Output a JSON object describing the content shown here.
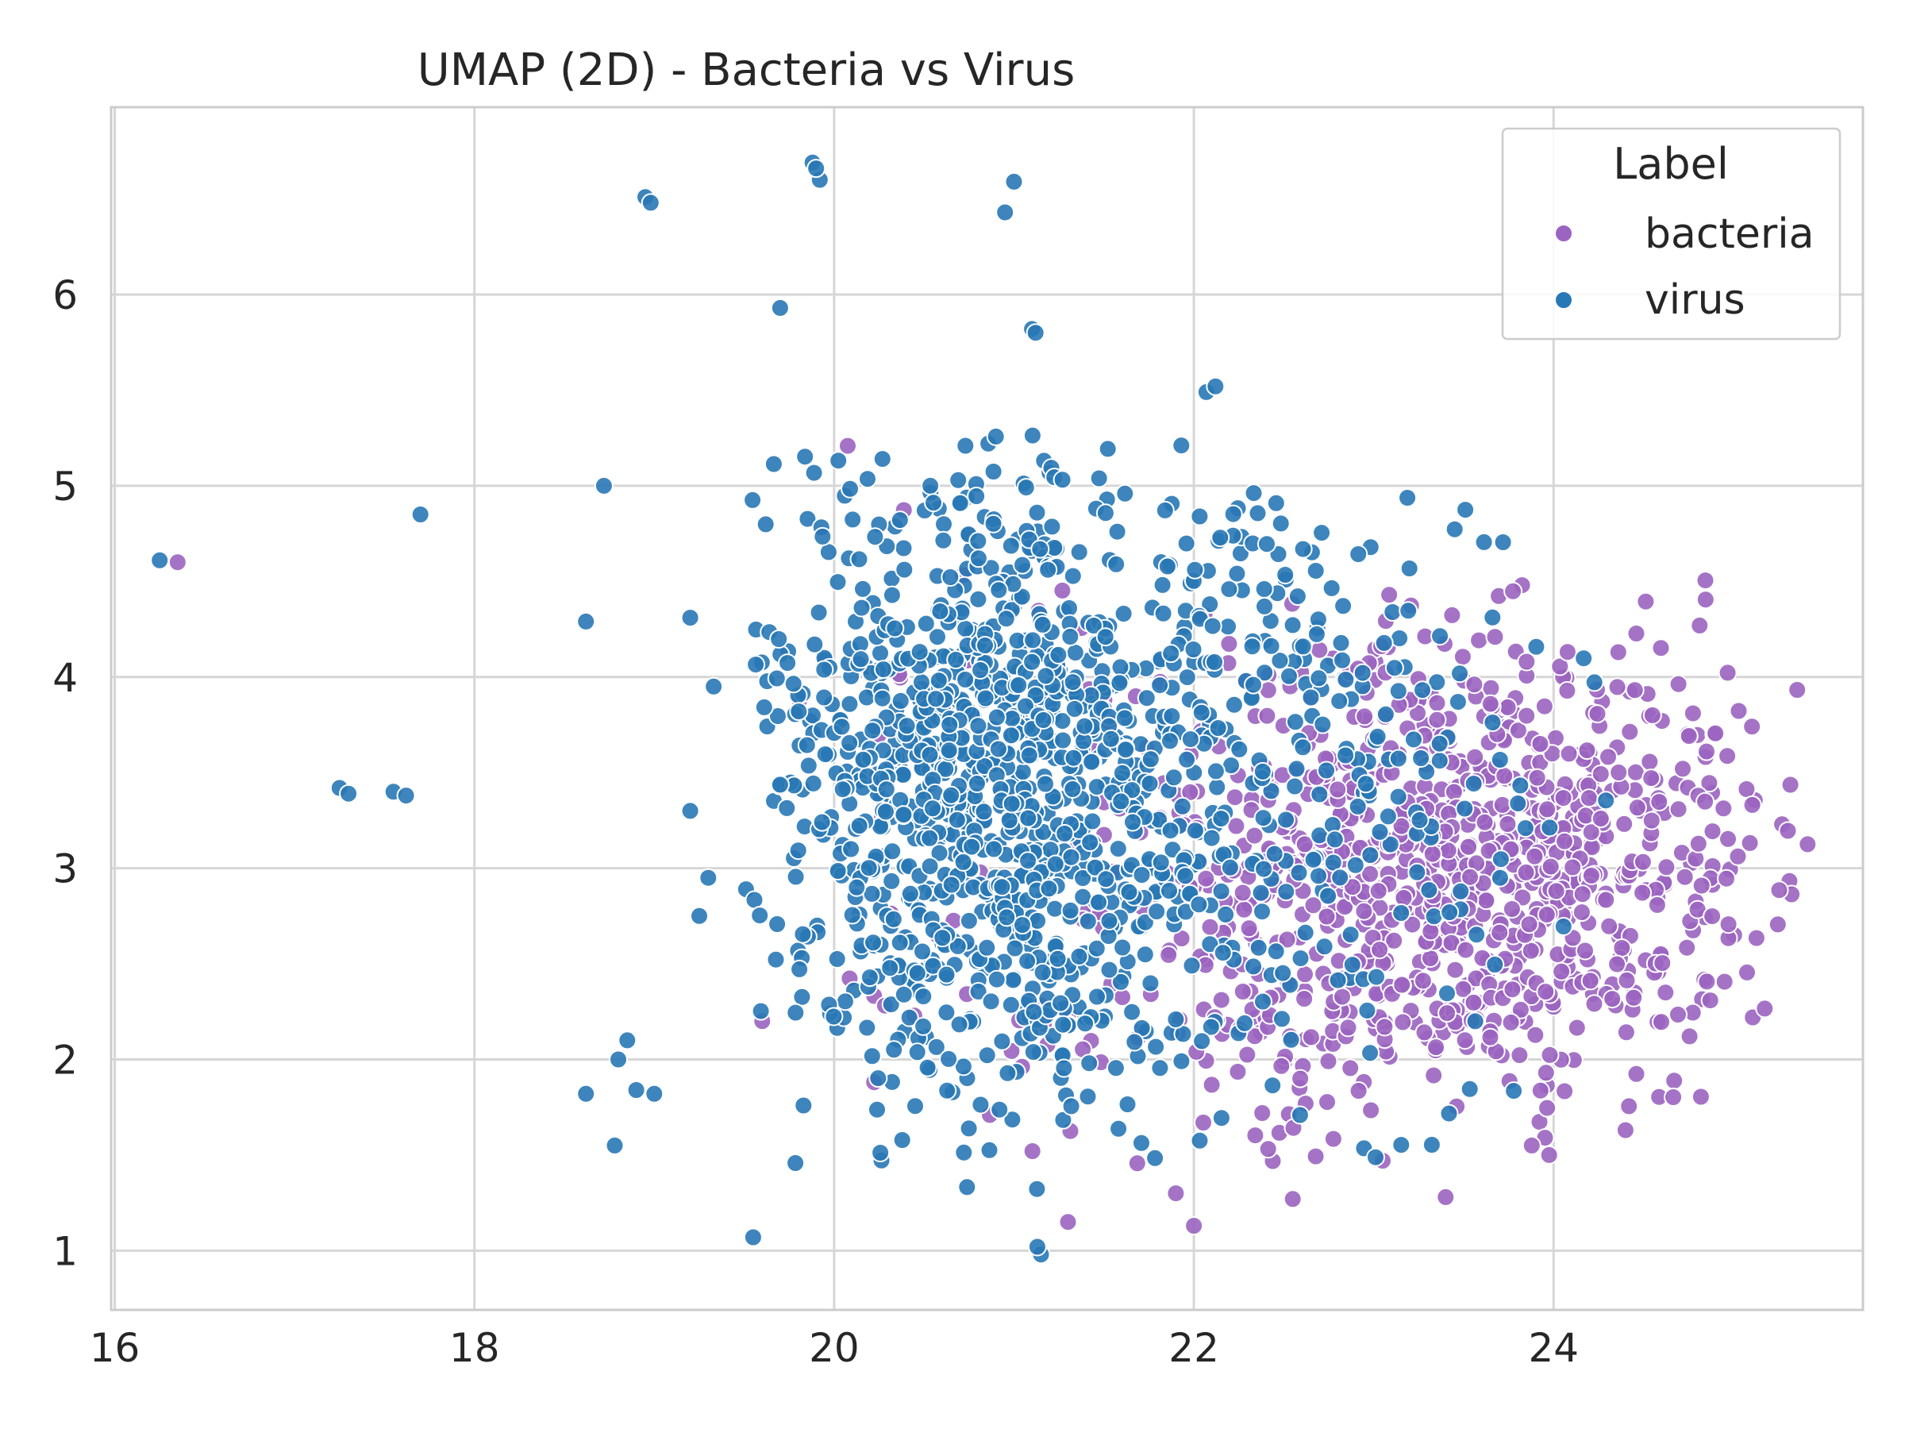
{
  "chart_data": {
    "type": "scatter",
    "title": "UMAP (2D) - Bacteria vs Virus",
    "xlabel": "",
    "ylabel": "",
    "xlim": [
      15.98,
      25.72
    ],
    "ylim": [
      0.69,
      6.98
    ],
    "x_ticks": [
      16,
      18,
      20,
      22,
      24
    ],
    "y_ticks": [
      1,
      2,
      3,
      4,
      5,
      6
    ],
    "grid": true,
    "legend": {
      "title": "Label",
      "position": "upper right",
      "entries": [
        {
          "label": "bacteria",
          "color": "#9b64c0"
        },
        {
          "label": "virus",
          "color": "#2878b5"
        }
      ]
    },
    "series": [
      {
        "name": "bacteria",
        "color": "#9b64c0",
        "outliers": [
          [
            16.35,
            4.6
          ],
          [
            19.6,
            2.2
          ],
          [
            20.25,
            3.7
          ],
          [
            20.6,
            3.9
          ],
          [
            21.3,
            1.15
          ],
          [
            21.9,
            1.3
          ],
          [
            22.0,
            1.13
          ],
          [
            22.55,
            1.27
          ],
          [
            23.05,
            1.47
          ],
          [
            23.4,
            1.28
          ],
          [
            23.85,
            4.08
          ],
          [
            24.4,
            1.63
          ],
          [
            24.55,
            3.8
          ]
        ],
        "clusters": [
          {
            "cx": 23.6,
            "cy": 3.0,
            "sx": 0.8,
            "sy": 0.62,
            "n": 820,
            "xmin": 22.0,
            "xmax": 25.42,
            "ymin": 1.5,
            "ymax": 4.55
          },
          {
            "cx": 22.3,
            "cy": 2.7,
            "sx": 0.6,
            "sy": 0.8,
            "n": 140,
            "xmin": 21.3,
            "xmax": 23.4,
            "ymin": 1.3,
            "ymax": 4.6
          },
          {
            "cx": 21.0,
            "cy": 3.0,
            "sx": 0.7,
            "sy": 0.9,
            "n": 50,
            "xmin": 19.8,
            "xmax": 22.2,
            "ymin": 1.2,
            "ymax": 5.3
          }
        ]
      },
      {
        "name": "virus",
        "color": "#2878b5",
        "outliers": [
          [
            16.25,
            4.61
          ],
          [
            17.25,
            3.42
          ],
          [
            17.3,
            3.39
          ],
          [
            17.55,
            3.4
          ],
          [
            17.62,
            3.38
          ],
          [
            17.7,
            4.85
          ],
          [
            18.62,
            4.29
          ],
          [
            18.72,
            5.0
          ],
          [
            18.62,
            1.82
          ],
          [
            18.78,
            1.55
          ],
          [
            18.8,
            2.0
          ],
          [
            18.85,
            2.1
          ],
          [
            18.9,
            1.84
          ],
          [
            18.95,
            6.51
          ],
          [
            18.98,
            6.48
          ],
          [
            19.0,
            1.82
          ],
          [
            19.2,
            4.31
          ],
          [
            19.2,
            3.3
          ],
          [
            19.25,
            2.75
          ],
          [
            19.3,
            2.95
          ],
          [
            19.33,
            3.95
          ],
          [
            19.55,
            1.07
          ],
          [
            19.7,
            5.93
          ],
          [
            19.88,
            6.69
          ],
          [
            19.92,
            6.6
          ],
          [
            19.9,
            6.66
          ],
          [
            20.95,
            6.43
          ],
          [
            21.0,
            6.59
          ],
          [
            21.1,
            5.82
          ],
          [
            21.12,
            5.8
          ],
          [
            21.15,
            0.98
          ],
          [
            21.13,
            1.02
          ],
          [
            22.07,
            5.49
          ],
          [
            22.12,
            5.52
          ]
        ],
        "clusters": [
          {
            "cx": 20.9,
            "cy": 3.4,
            "sx": 0.65,
            "sy": 0.85,
            "n": 1150,
            "xmin": 19.5,
            "xmax": 22.6,
            "ymin": 1.2,
            "ymax": 5.3
          },
          {
            "cx": 22.5,
            "cy": 3.6,
            "sx": 0.55,
            "sy": 0.9,
            "n": 230,
            "xmin": 21.5,
            "xmax": 23.8,
            "ymin": 1.4,
            "ymax": 5.0
          },
          {
            "cx": 23.5,
            "cy": 3.4,
            "sx": 0.55,
            "sy": 0.6,
            "n": 35,
            "xmin": 22.8,
            "xmax": 24.3,
            "ymin": 1.5,
            "ymax": 4.4
          }
        ]
      }
    ]
  }
}
